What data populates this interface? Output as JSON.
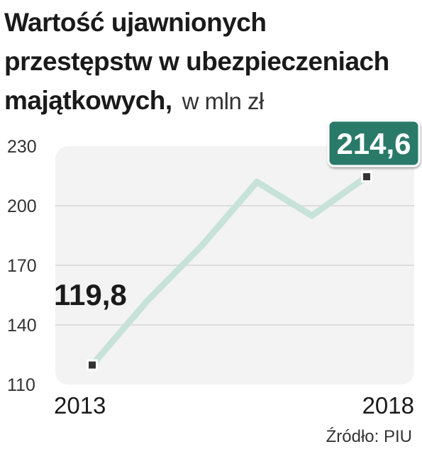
{
  "title": "Wartość ujawnionych przestępstw w ubezpieczeniach majątkowych,",
  "unit": "w mln zł",
  "source": "Źródło: PIU",
  "colors": {
    "line": "#c7e2d9",
    "plot_bg": "#f3f3f3",
    "highlight": "#2c7a69",
    "marker": "#333333"
  },
  "chart_data": {
    "type": "line",
    "x": [
      2013,
      2014,
      2015,
      2016,
      2017,
      2018
    ],
    "series": [
      {
        "values": [
          119.8,
          152,
          180,
          212,
          195,
          214.6
        ]
      }
    ],
    "x_tick_labels": [
      "2013",
      "2018"
    ],
    "y_ticks": [
      110,
      140,
      170,
      200,
      230
    ],
    "y_tick_labels": [
      "110",
      "140",
      "170",
      "200",
      "230"
    ],
    "ylim": [
      110,
      230
    ],
    "grid": true,
    "annotations": [
      {
        "x": 2013,
        "label": "119,8",
        "style": "plain"
      },
      {
        "x": 2018,
        "label": "214,6",
        "style": "boxed"
      }
    ]
  }
}
